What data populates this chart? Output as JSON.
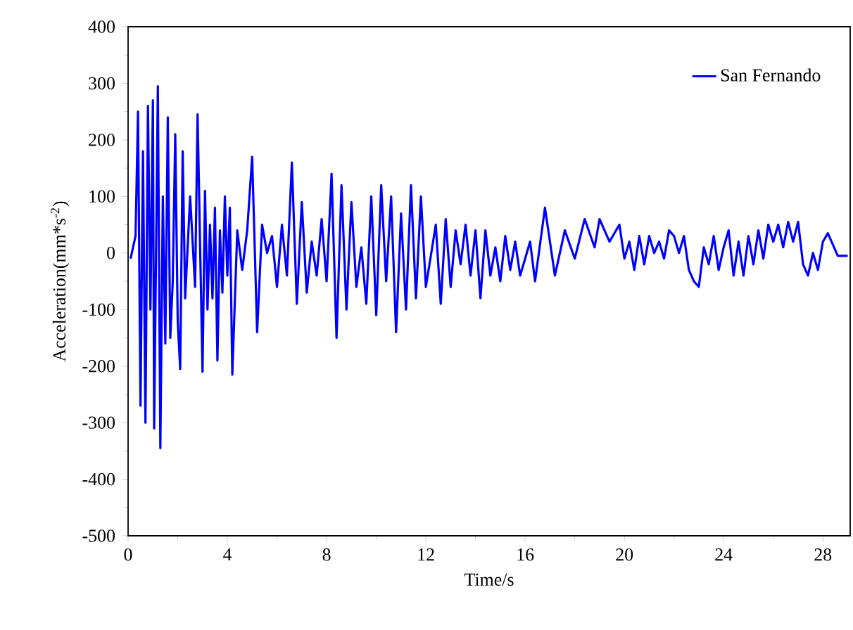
{
  "chart_data": {
    "type": "line",
    "xlabel": "Time/s",
    "ylabel": "Acceleration(mm*s$^{-2}$)",
    "xlim": [
      0,
      29.1
    ],
    "ylim": [
      -500,
      400
    ],
    "xticks": [
      0,
      4,
      8,
      12,
      16,
      20,
      24,
      28
    ],
    "yticks": [
      -500,
      -400,
      -300,
      -200,
      -100,
      0,
      100,
      200,
      300,
      400
    ],
    "legend": "top right",
    "grid": false,
    "marker": "none",
    "line_style": "solid",
    "series": [
      {
        "name": "San Fernando",
        "color": "#0000ff",
        "x": [
          0.1,
          0.3,
          0.4,
          0.5,
          0.6,
          0.7,
          0.8,
          0.9,
          1.0,
          1.05,
          1.2,
          1.3,
          1.4,
          1.5,
          1.6,
          1.7,
          1.8,
          1.9,
          2.0,
          2.1,
          2.2,
          2.3,
          2.5,
          2.7,
          2.8,
          3.0,
          3.1,
          3.2,
          3.3,
          3.4,
          3.5,
          3.6,
          3.7,
          3.8,
          3.9,
          4.0,
          4.1,
          4.2,
          4.4,
          4.6,
          4.8,
          5.0,
          5.2,
          5.4,
          5.6,
          5.8,
          6.0,
          6.2,
          6.4,
          6.6,
          6.8,
          7.0,
          7.2,
          7.4,
          7.6,
          7.8,
          8.0,
          8.2,
          8.4,
          8.6,
          8.8,
          9.0,
          9.2,
          9.4,
          9.6,
          9.8,
          10.0,
          10.2,
          10.4,
          10.6,
          10.8,
          11.0,
          11.2,
          11.4,
          11.6,
          11.8,
          12.0,
          12.4,
          12.6,
          12.8,
          13.0,
          13.2,
          13.4,
          13.6,
          13.8,
          14.0,
          14.2,
          14.4,
          14.6,
          14.8,
          15.0,
          15.2,
          15.4,
          15.6,
          15.8,
          16.2,
          16.4,
          16.8,
          17.2,
          17.6,
          18.0,
          18.4,
          18.8,
          19.0,
          19.4,
          19.8,
          20.0,
          20.2,
          20.4,
          20.6,
          20.8,
          21.0,
          21.2,
          21.4,
          21.6,
          21.8,
          22.0,
          22.2,
          22.4,
          22.6,
          22.8,
          23.0,
          23.2,
          23.4,
          23.6,
          23.8,
          24.0,
          24.2,
          24.4,
          24.6,
          24.8,
          25.0,
          25.2,
          25.4,
          25.6,
          25.8,
          26.0,
          26.2,
          26.4,
          26.6,
          26.8,
          27.0,
          27.2,
          27.4,
          27.6,
          27.8,
          28.0,
          28.2,
          28.6,
          29.0
        ],
        "values": [
          -10,
          30,
          250,
          -270,
          180,
          -300,
          260,
          -100,
          270,
          -310,
          295,
          -345,
          100,
          -160,
          240,
          -150,
          -50,
          210,
          -120,
          -205,
          180,
          -80,
          100,
          -60,
          245,
          -210,
          110,
          -100,
          50,
          -80,
          80,
          -190,
          40,
          -70,
          100,
          -40,
          80,
          -215,
          40,
          -30,
          40,
          170,
          -140,
          50,
          0,
          30,
          -60,
          50,
          -40,
          160,
          -90,
          90,
          -70,
          20,
          -40,
          60,
          -50,
          140,
          -150,
          120,
          -100,
          90,
          -60,
          10,
          -90,
          100,
          -110,
          120,
          -50,
          100,
          -140,
          70,
          -100,
          120,
          -80,
          100,
          -60,
          50,
          -90,
          60,
          -60,
          40,
          -20,
          50,
          -40,
          40,
          -80,
          40,
          -40,
          10,
          -50,
          30,
          -30,
          20,
          -40,
          20,
          -50,
          80,
          -40,
          40,
          -10,
          60,
          10,
          60,
          20,
          50,
          -10,
          20,
          -30,
          30,
          -20,
          30,
          0,
          20,
          -10,
          40,
          30,
          0,
          30,
          -30,
          -50,
          -60,
          10,
          -20,
          30,
          -30,
          10,
          40,
          -40,
          20,
          -40,
          30,
          -20,
          40,
          -10,
          50,
          20,
          50,
          10,
          55,
          20,
          55,
          -20,
          -40,
          0,
          -30,
          20,
          35,
          -5,
          -5
        ]
      }
    ]
  }
}
